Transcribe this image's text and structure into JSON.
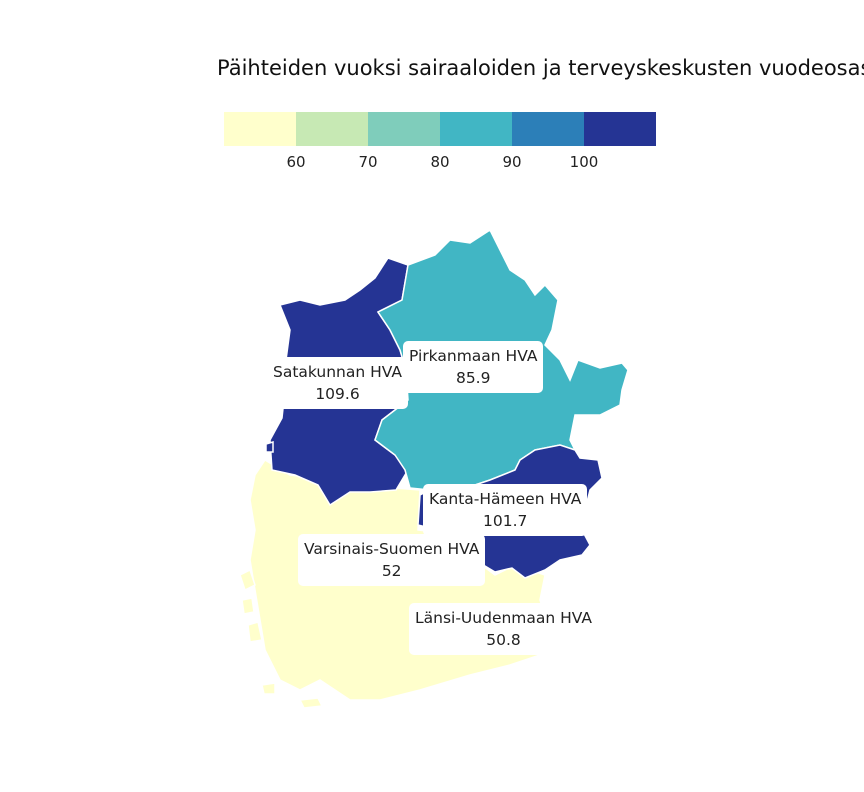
{
  "title": "Päihteiden vuoksi sairaaloiden ja terveyskeskusten vuodeosastoilla hoidetut potilaat",
  "legend": {
    "colors": [
      "#ffffcc",
      "#c7e9b4",
      "#7fcdbb",
      "#41b6c4",
      "#2c7fb8",
      "#253494"
    ],
    "ticks": [
      "60",
      "70",
      "80",
      "90",
      "100"
    ]
  },
  "regions": [
    {
      "name": "Satakunnan HVA",
      "value": "109.6",
      "color": "#253494"
    },
    {
      "name": "Pirkanmaan HVA",
      "value": "85.9",
      "color": "#41b6c4"
    },
    {
      "name": "Kanta-Hämeen HVA",
      "value": "101.7",
      "color": "#253494"
    },
    {
      "name": "Varsinais-Suomen HVA",
      "value": "52",
      "color": "#ffffcc"
    },
    {
      "name": "Länsi-Uudenmaan HVA",
      "value": "50.8",
      "color": "#ffffcc"
    }
  ]
}
